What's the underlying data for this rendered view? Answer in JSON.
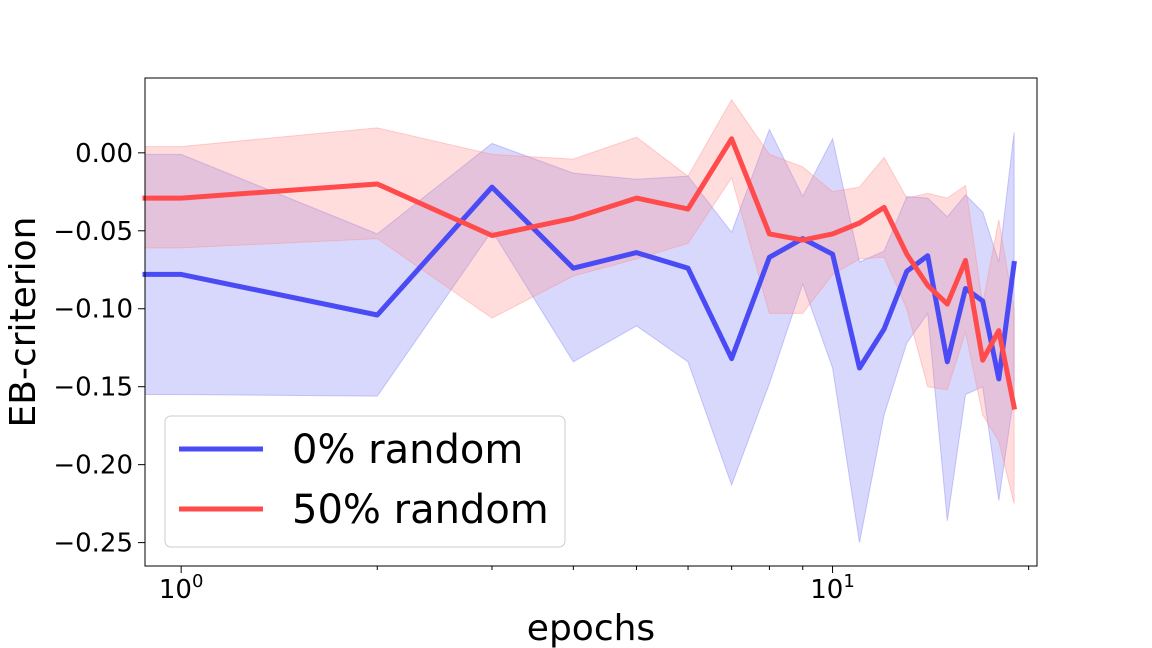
{
  "chart_data": {
    "type": "line",
    "xlabel": "epochs",
    "ylabel": "EB-criterion",
    "xscale": "log",
    "xlim": [
      0.88,
      20.6
    ],
    "ylim": [
      -0.265,
      0.048
    ],
    "x_ticks": [
      {
        "value": 1,
        "base": "10",
        "exp": "0"
      },
      {
        "value": 10,
        "base": "10",
        "exp": "1"
      }
    ],
    "y_ticks": [
      {
        "value": 0.0,
        "label": "0.00"
      },
      {
        "value": -0.05,
        "label": "−0.05"
      },
      {
        "value": -0.1,
        "label": "−0.10"
      },
      {
        "value": -0.15,
        "label": "−0.15"
      },
      {
        "value": -0.2,
        "label": "−0.20"
      },
      {
        "value": -0.25,
        "label": "−0.25"
      }
    ],
    "legend_position": "lower-left",
    "grid": false,
    "series": [
      {
        "name": "0% random",
        "color": "#4b4bf5",
        "band_color": "#7f7ff5",
        "x": [
          0.88,
          1,
          2,
          3,
          4,
          5,
          6,
          7,
          8,
          9,
          10,
          11,
          12,
          13,
          14,
          15,
          16,
          17,
          18,
          19
        ],
        "y": [
          -0.078,
          -0.078,
          -0.104,
          -0.022,
          -0.074,
          -0.064,
          -0.074,
          -0.132,
          -0.067,
          -0.055,
          -0.065,
          -0.138,
          -0.113,
          -0.076,
          -0.066,
          -0.134,
          -0.087,
          -0.095,
          -0.145,
          -0.071
        ],
        "upper": [
          -0.001,
          -0.001,
          -0.052,
          0.006,
          -0.013,
          -0.017,
          -0.015,
          -0.051,
          0.015,
          -0.028,
          0.009,
          -0.07,
          -0.063,
          -0.028,
          -0.029,
          -0.041,
          -0.027,
          -0.038,
          -0.07,
          0.013
        ],
        "lower": [
          -0.155,
          -0.155,
          -0.156,
          -0.05,
          -0.134,
          -0.111,
          -0.134,
          -0.213,
          -0.148,
          -0.084,
          -0.138,
          -0.25,
          -0.168,
          -0.122,
          -0.103,
          -0.236,
          -0.155,
          -0.15,
          -0.223,
          -0.155
        ]
      },
      {
        "name": "50% random",
        "color": "#ff4b4b",
        "band_color": "#ff8d8d",
        "x": [
          0.88,
          1,
          2,
          3,
          4,
          5,
          6,
          7,
          8,
          9,
          10,
          11,
          12,
          13,
          14,
          15,
          16,
          17,
          18,
          19
        ],
        "y": [
          -0.029,
          -0.029,
          -0.02,
          -0.053,
          -0.042,
          -0.029,
          -0.036,
          0.009,
          -0.052,
          -0.056,
          -0.052,
          -0.045,
          -0.035,
          -0.065,
          -0.085,
          -0.097,
          -0.069,
          -0.133,
          -0.114,
          -0.163
        ],
        "upper": [
          0.004,
          0.004,
          0.016,
          -0.001,
          -0.004,
          0.01,
          -0.015,
          0.034,
          -0.001,
          -0.009,
          -0.025,
          -0.022,
          -0.003,
          -0.029,
          -0.026,
          -0.029,
          -0.021,
          -0.097,
          -0.043,
          -0.101
        ],
        "lower": [
          -0.061,
          -0.061,
          -0.055,
          -0.106,
          -0.079,
          -0.068,
          -0.058,
          -0.016,
          -0.103,
          -0.103,
          -0.078,
          -0.068,
          -0.067,
          -0.1,
          -0.15,
          -0.152,
          -0.115,
          -0.168,
          -0.185,
          -0.225
        ]
      }
    ]
  }
}
